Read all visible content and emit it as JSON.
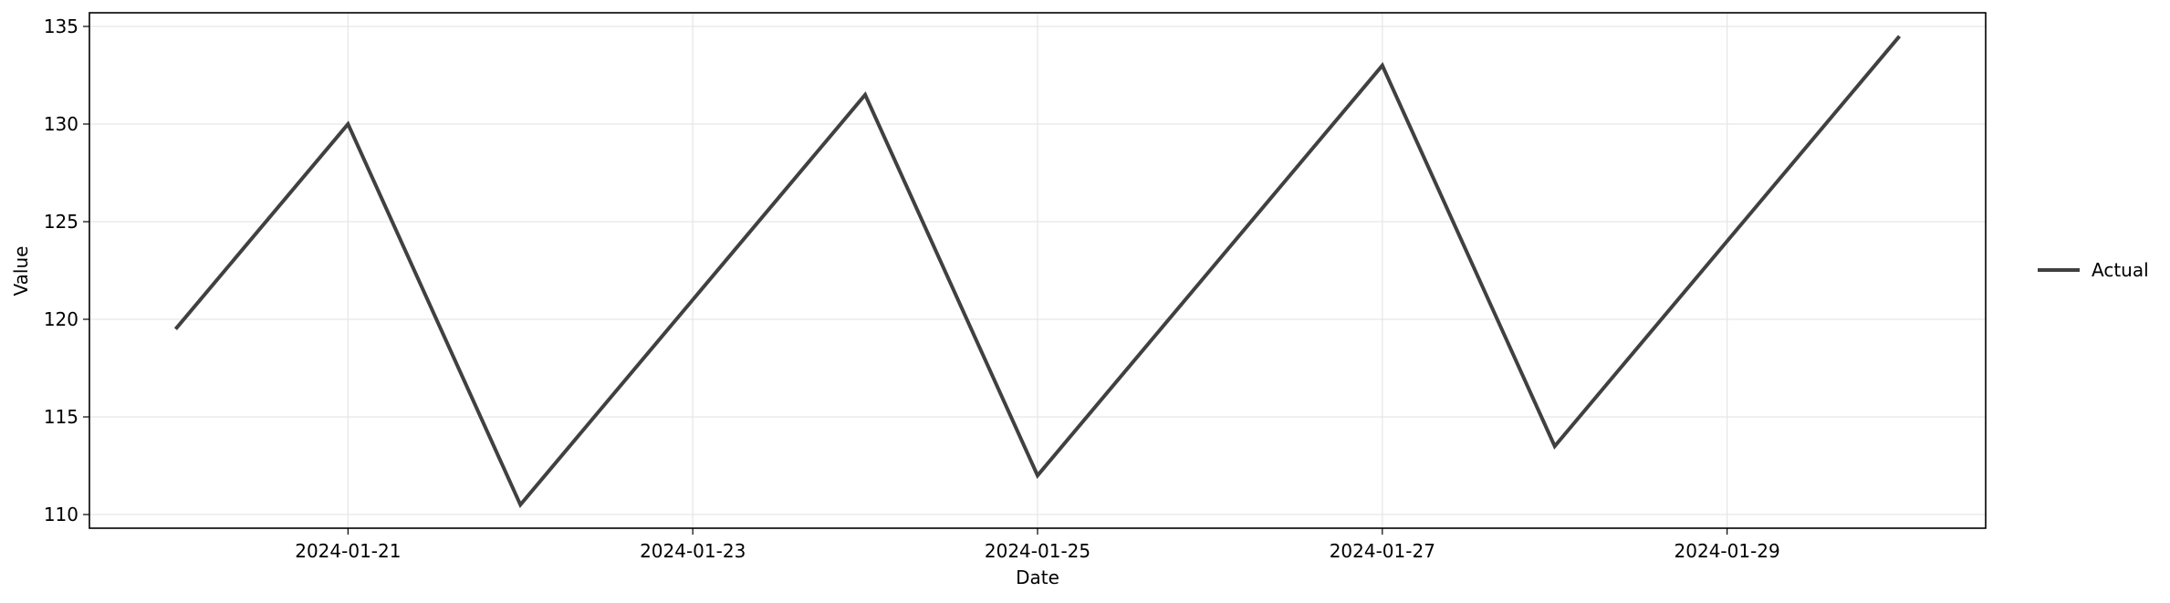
{
  "chart_data": {
    "type": "line",
    "title": "",
    "xlabel": "Date",
    "ylabel": "Value",
    "x": [
      "2024-01-20",
      "2024-01-21",
      "2024-01-22",
      "2024-01-23",
      "2024-01-24",
      "2024-01-25",
      "2024-01-26",
      "2024-01-27",
      "2024-01-28",
      "2024-01-29",
      "2024-01-30"
    ],
    "series": [
      {
        "name": "Actual",
        "color": "#404040",
        "values": [
          119.5,
          130.0,
          110.5,
          121.0,
          131.5,
          112.0,
          122.5,
          133.0,
          113.5,
          124.0,
          134.5
        ]
      }
    ],
    "xlim": [
      "2024-01-19 12:00",
      "2024-01-30 12:00"
    ],
    "ylim": [
      109.3,
      135.7
    ],
    "x_ticks": [
      "2024-01-21",
      "2024-01-23",
      "2024-01-25",
      "2024-01-27",
      "2024-01-29"
    ],
    "y_ticks": [
      110,
      115,
      120,
      125,
      130,
      135
    ],
    "grid": true,
    "legend_position": "right"
  }
}
